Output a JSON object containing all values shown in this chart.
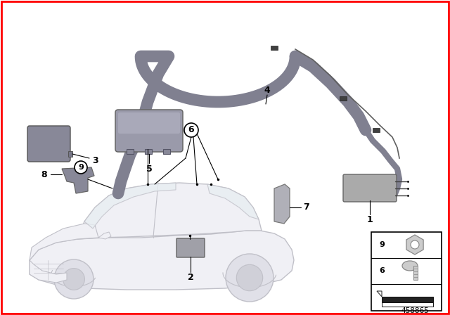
{
  "background_color": "#ffffff",
  "border_color": "#ff0000",
  "diagram_number": "458865",
  "fig_width": 6.4,
  "fig_height": 4.48,
  "dpi": 100,
  "car_edge_color": "#c0c0c8",
  "car_fill_color": "#f0f0f5",
  "antenna_color": "#808090",
  "part_fill": "#999999",
  "part3_fill": "#888898",
  "part5_fill": "#9a9aaa",
  "part1_fill": "#aaaaaa",
  "part7_fill": "#b0b0b8",
  "part8_fill": "#888898"
}
